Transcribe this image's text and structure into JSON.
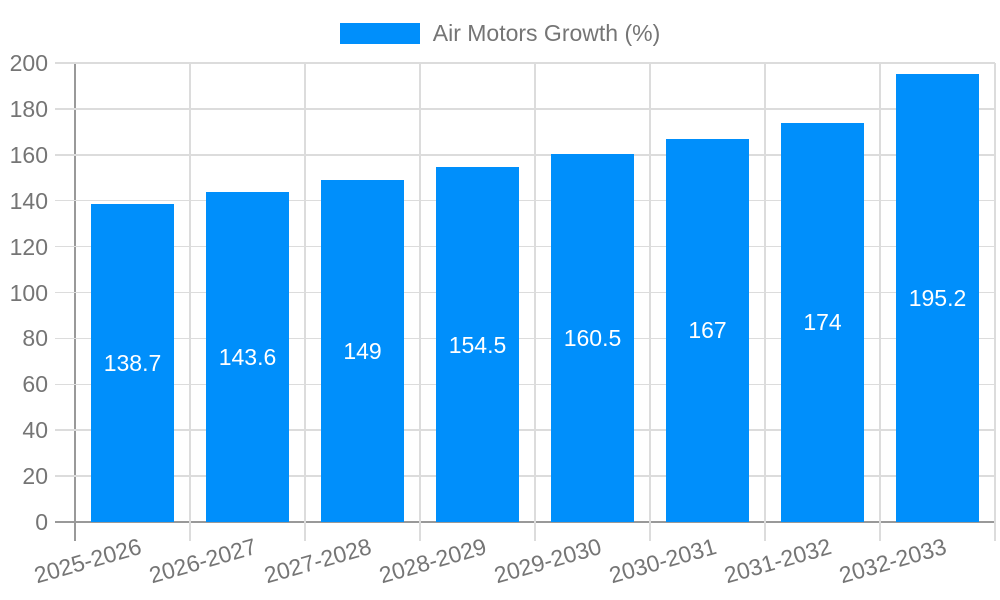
{
  "chart_data": {
    "type": "bar",
    "title": "Air Motors Growth (%)",
    "legend": {
      "label": "Air Motors Growth (%)",
      "position": "top-center"
    },
    "categories": [
      "2025-2026",
      "2026-2027",
      "2027-2028",
      "2028-2029",
      "2029-2030",
      "2030-2031",
      "2031-2032",
      "2032-2033"
    ],
    "series": [
      {
        "name": "Air Motors Growth (%)",
        "values": [
          138.7,
          143.6,
          149,
          154.5,
          160.5,
          167,
          174,
          195.2
        ]
      }
    ],
    "value_labels": [
      "138.7",
      "143.6",
      "149",
      "154.5",
      "160.5",
      "167",
      "174",
      "195.2"
    ],
    "xlabel": "",
    "ylabel": "",
    "ylim": [
      0,
      200
    ],
    "ytick_step": 20,
    "ytick_labels": [
      "0",
      "20",
      "40",
      "60",
      "80",
      "100",
      "120",
      "140",
      "160",
      "180",
      "200"
    ],
    "grid": true,
    "x_label_rotation_deg": -16,
    "colors": {
      "bar": "#008FFB",
      "grid": "#dcdcdc",
      "axis": "#999999",
      "label_text": "#757575",
      "value_text": "#ffffff",
      "background": "#ffffff"
    }
  }
}
